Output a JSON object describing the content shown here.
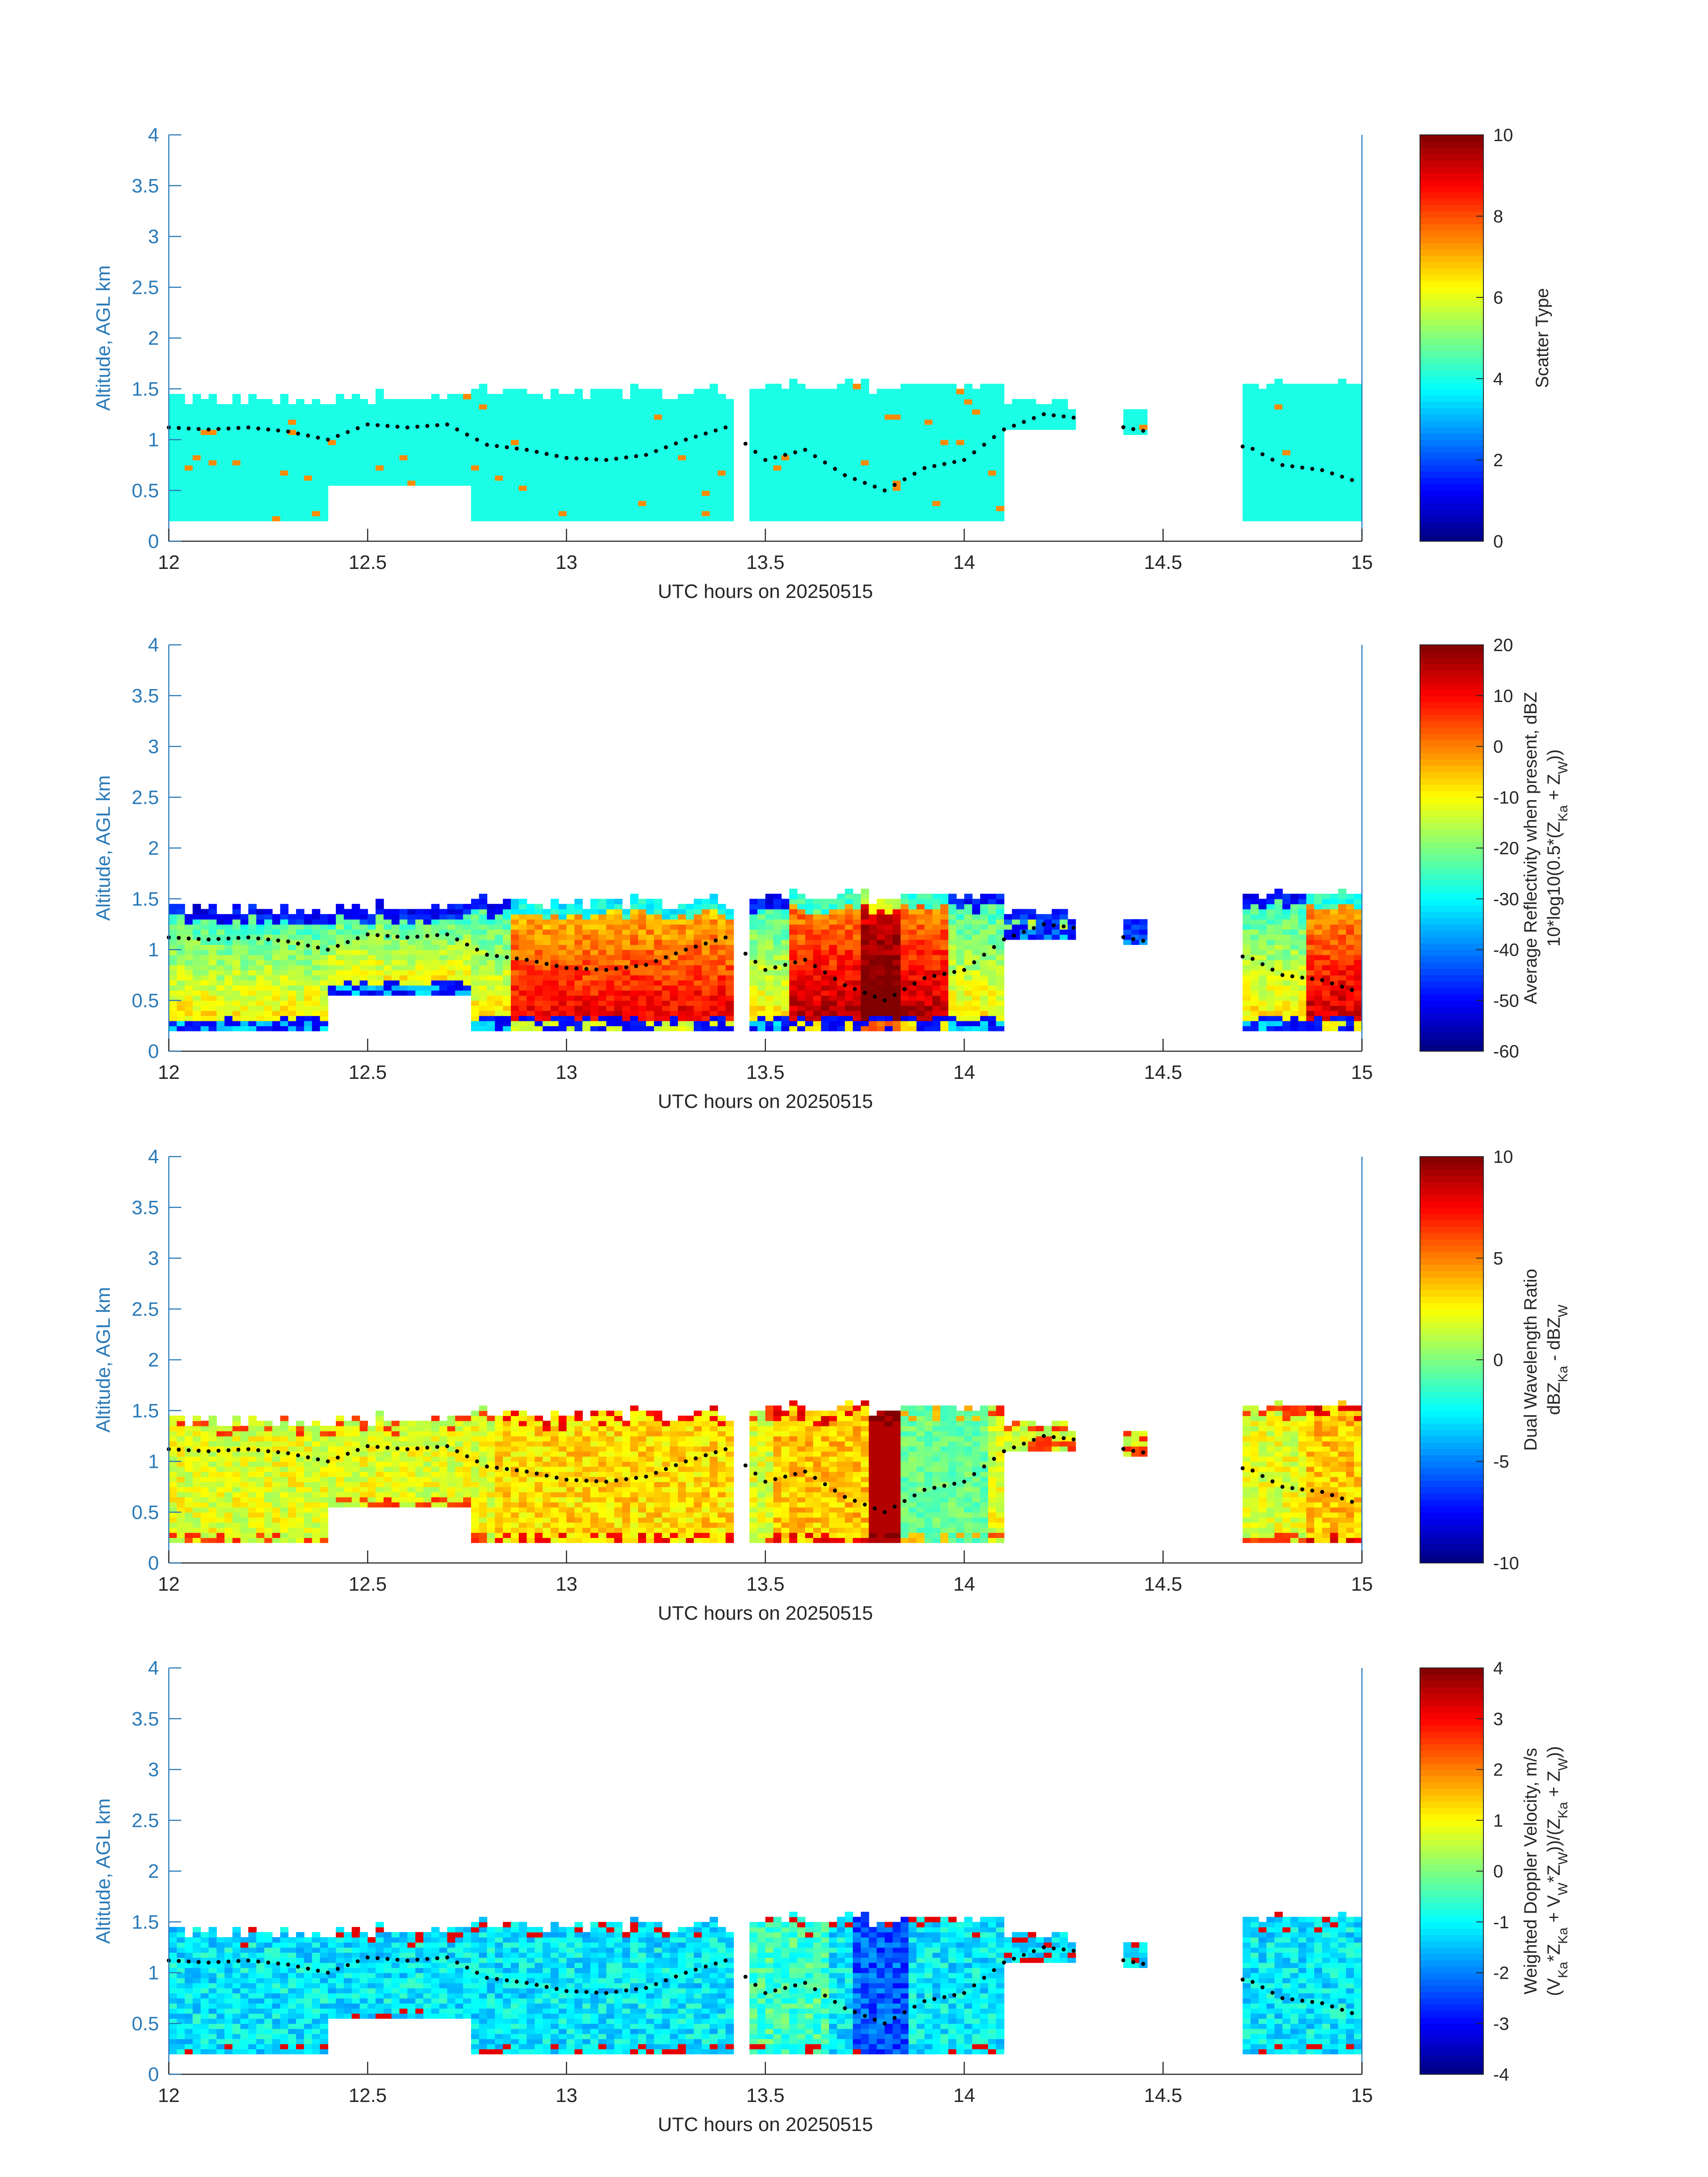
{
  "figure": {
    "ylabel": "Altitude, AGL km",
    "xlabel": "UTC hours on 20250515",
    "x_ticks": [
      "12",
      "12.5",
      "13",
      "13.5",
      "14",
      "14.5",
      "15"
    ],
    "y_ticks": [
      "0",
      "0.5",
      "1",
      "1.5",
      "2",
      "2.5",
      "3",
      "3.5",
      "4"
    ],
    "colormap": "jet",
    "colors": {
      "axis": "#2a7ab8",
      "text": "#262626",
      "marker": "#000000"
    }
  },
  "chart_data": [
    {
      "type": "heatmap",
      "variable": "scatter_type",
      "xlabel": "UTC hours on 20250515",
      "ylabel": "Altitude, AGL km",
      "xlim": [
        12,
        15
      ],
      "ylim": [
        0,
        4
      ],
      "colorbar": {
        "label_lines": [
          "Scatter Type"
        ],
        "min": 0,
        "max": 10,
        "ticks": [
          "0",
          "2",
          "4",
          "6",
          "8",
          "10"
        ]
      }
    },
    {
      "type": "heatmap",
      "variable": "reflectivity",
      "xlabel": "UTC hours on 20250515",
      "ylabel": "Altitude, AGL km",
      "xlim": [
        12,
        15
      ],
      "ylim": [
        0,
        4
      ],
      "colorbar": {
        "label_lines": [
          "Average Reflectivity when present, dBZ",
          "10*log10(0.5*(Z_Ka + Z_W))"
        ],
        "min": -60,
        "max": 20,
        "ticks": [
          "-60",
          "-50",
          "-40",
          "-30",
          "-20",
          "-10",
          "0",
          "10",
          "20"
        ]
      }
    },
    {
      "type": "heatmap",
      "variable": "dwr",
      "xlabel": "UTC hours on 20250515",
      "ylabel": "Altitude, AGL km",
      "xlim": [
        12,
        15
      ],
      "ylim": [
        0,
        4
      ],
      "colorbar": {
        "label_lines": [
          "Dual Wavelength Ratio",
          "dBZ_Ka - dBZ_W"
        ],
        "min": -10,
        "max": 10,
        "ticks": [
          "-10",
          "-5",
          "0",
          "5",
          "10"
        ]
      }
    },
    {
      "type": "heatmap",
      "variable": "doppler",
      "xlabel": "UTC hours on 20250515",
      "ylabel": "Altitude, AGL km",
      "xlim": [
        12,
        15
      ],
      "ylim": [
        0,
        4
      ],
      "colorbar": {
        "label_lines": [
          "Weighted Doppler Velocity, m/s",
          "(V_Ka*Z_Ka + V_W*Z_W))/(Z_Ka + Z_W))"
        ],
        "min": -4,
        "max": 4,
        "ticks": [
          "-4",
          "-3",
          "-2",
          "-1",
          "0",
          "1",
          "2",
          "3",
          "4"
        ]
      }
    }
  ],
  "cloud_layers": [
    {
      "x_start": 12.0,
      "x_end": 12.4,
      "base": 0.2,
      "top": 1.38
    },
    {
      "x_start": 12.4,
      "x_end": 12.75,
      "base": 0.55,
      "top": 1.4
    },
    {
      "x_start": 12.75,
      "x_end": 13.42,
      "base": 0.2,
      "top": 1.45
    },
    {
      "x_start": 13.45,
      "x_end": 14.1,
      "base": 0.2,
      "top": 1.5
    },
    {
      "x_start": 14.1,
      "x_end": 14.28,
      "base": 1.1,
      "top": 1.35
    },
    {
      "x_start": 14.4,
      "x_end": 14.46,
      "base": 1.05,
      "top": 1.25
    },
    {
      "x_start": 14.7,
      "x_end": 15.0,
      "base": 0.2,
      "top": 1.55
    }
  ],
  "cloud_top_markers": [
    {
      "x": 12.0,
      "y": 1.12
    },
    {
      "x": 12.1,
      "y": 1.1
    },
    {
      "x": 12.2,
      "y": 1.12
    },
    {
      "x": 12.3,
      "y": 1.08
    },
    {
      "x": 12.4,
      "y": 1.0
    },
    {
      "x": 12.5,
      "y": 1.15
    },
    {
      "x": 12.6,
      "y": 1.12
    },
    {
      "x": 12.7,
      "y": 1.15
    },
    {
      "x": 12.8,
      "y": 0.95
    },
    {
      "x": 12.9,
      "y": 0.9
    },
    {
      "x": 13.0,
      "y": 0.82
    },
    {
      "x": 13.1,
      "y": 0.8
    },
    {
      "x": 13.2,
      "y": 0.85
    },
    {
      "x": 13.3,
      "y": 1.0
    },
    {
      "x": 13.4,
      "y": 1.12
    },
    {
      "x": 13.5,
      "y": 0.8
    },
    {
      "x": 13.6,
      "y": 0.9
    },
    {
      "x": 13.7,
      "y": 0.65
    },
    {
      "x": 13.8,
      "y": 0.5
    },
    {
      "x": 13.9,
      "y": 0.72
    },
    {
      "x": 14.0,
      "y": 0.8
    },
    {
      "x": 14.1,
      "y": 1.1
    },
    {
      "x": 14.2,
      "y": 1.25
    },
    {
      "x": 14.27,
      "y": 1.22
    },
    {
      "x": 14.43,
      "y": 1.1
    },
    {
      "x": 14.72,
      "y": 0.92
    },
    {
      "x": 14.8,
      "y": 0.75
    },
    {
      "x": 14.9,
      "y": 0.7
    },
    {
      "x": 15.0,
      "y": 0.57
    }
  ]
}
